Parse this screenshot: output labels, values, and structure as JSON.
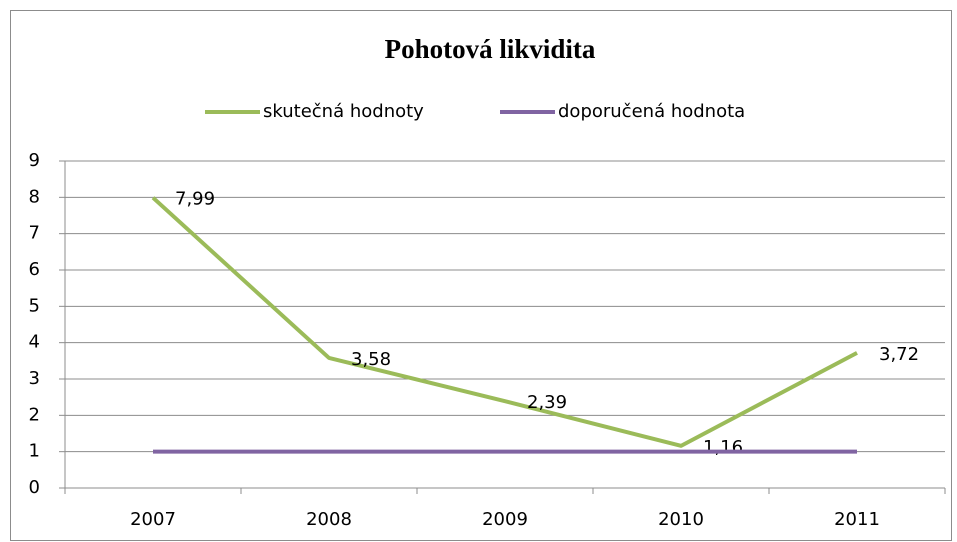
{
  "chart_data": {
    "type": "line",
    "title": "Pohotová likvidita",
    "categories": [
      "2007",
      "2008",
      "2009",
      "2010",
      "2011"
    ],
    "series": [
      {
        "name": "skutečná hodnoty",
        "color": "#9bbb59",
        "values": [
          7.99,
          3.58,
          2.39,
          1.16,
          3.72
        ],
        "value_labels": [
          "7,99",
          "3,58",
          "2,39",
          "1,16",
          "3,72"
        ]
      },
      {
        "name": "doporučená hodnota",
        "color": "#8064a2",
        "values": [
          1,
          1,
          1,
          1,
          1
        ]
      }
    ],
    "ylim": [
      0,
      9
    ],
    "yticks": [
      0,
      1,
      2,
      3,
      4,
      5,
      6,
      7,
      8,
      9
    ],
    "grid": true,
    "legend": "top"
  }
}
